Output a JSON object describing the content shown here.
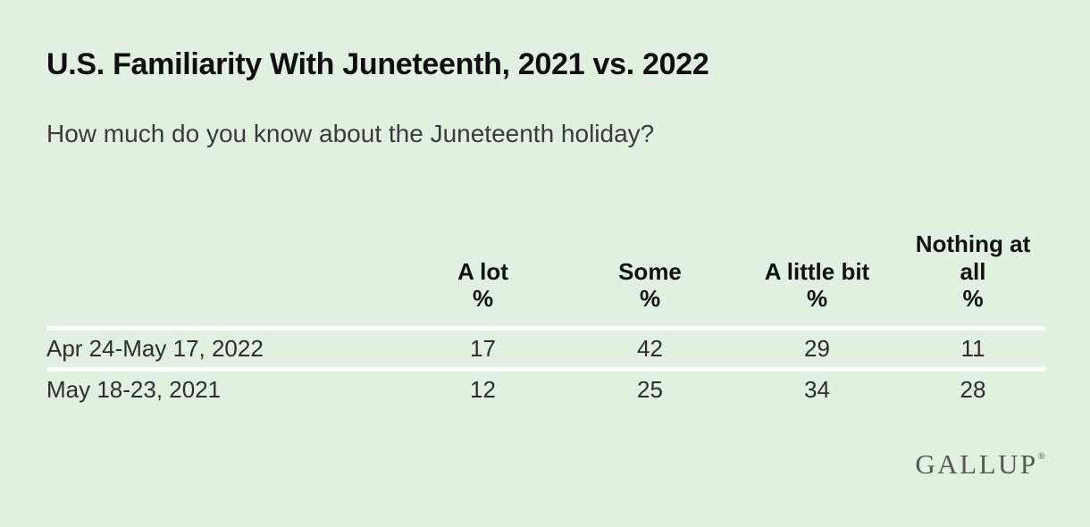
{
  "title": "U.S. Familiarity With Juneteenth, 2021 vs. 2022",
  "subtitle": "How much do you know about the Juneteenth holiday?",
  "brand": {
    "logo_text": "GALLUP",
    "registered_mark": "®"
  },
  "colors": {
    "background": "#e1f0e0",
    "title_text": "#0e0e0e",
    "subtitle_text": "#3b3b3b",
    "table_text": "#2e2e2e",
    "divider": "#ffffff",
    "logo_text": "#555851"
  },
  "chart_data": {
    "type": "table",
    "title": "U.S. Familiarity With Juneteenth, 2021 vs. 2022",
    "question": "How much do you know about the Juneteenth holiday?",
    "unit": "%",
    "columns": [
      {
        "label": "A lot",
        "unit": "%"
      },
      {
        "label": "Some",
        "unit": "%"
      },
      {
        "label": "A little bit",
        "unit": "%"
      },
      {
        "label": "Nothing at all",
        "unit": "%"
      }
    ],
    "rows": [
      {
        "label": "Apr 24-May 17, 2022",
        "values": [
          "17",
          "42",
          "29",
          "11"
        ]
      },
      {
        "label": "May 18-23, 2021",
        "values": [
          "12",
          "25",
          "34",
          "28"
        ]
      }
    ]
  }
}
